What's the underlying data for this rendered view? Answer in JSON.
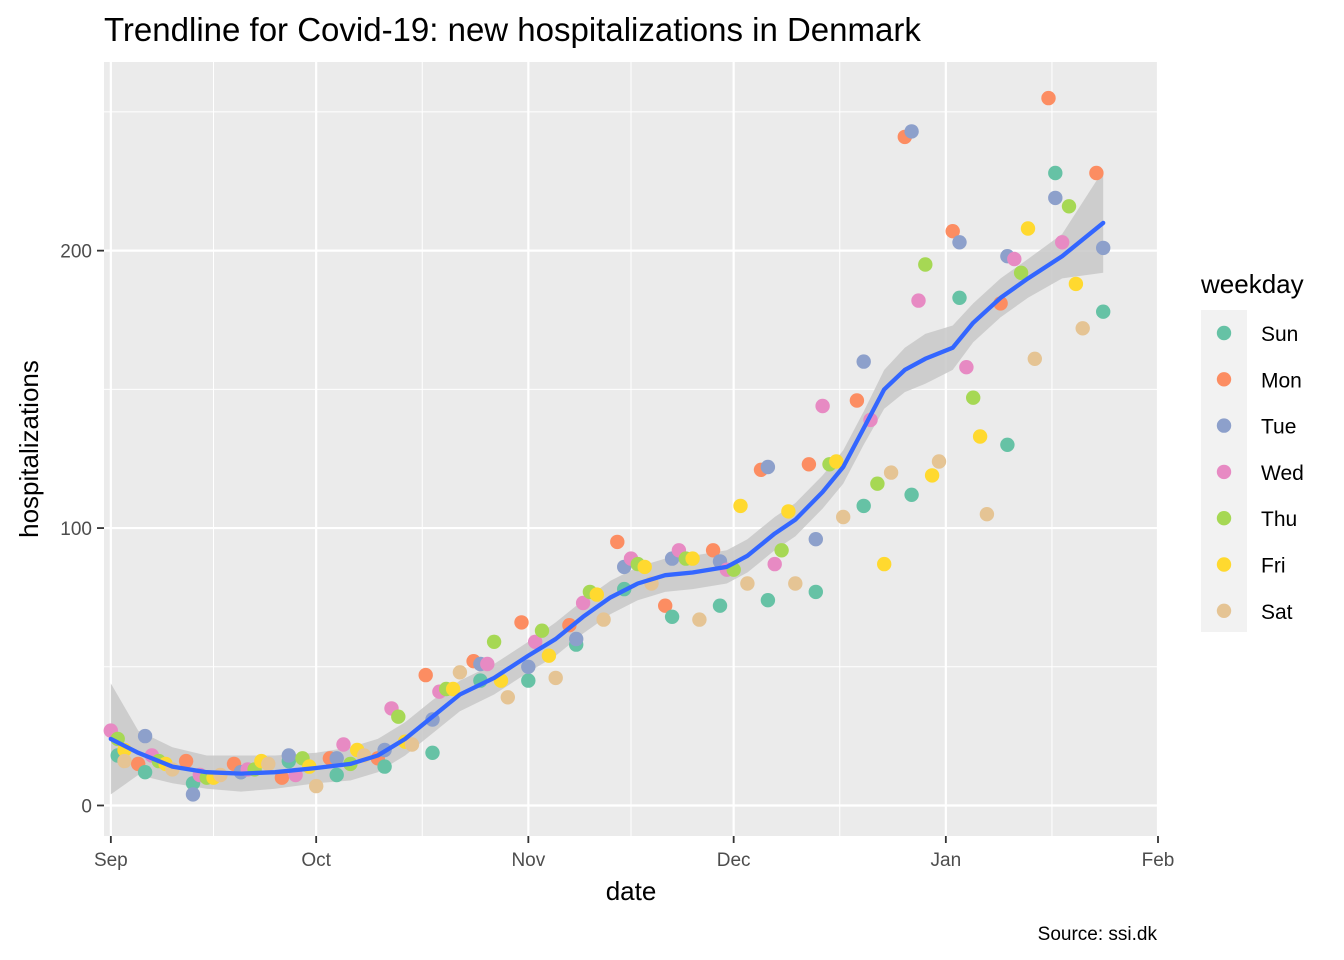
{
  "chart_data": {
    "type": "scatter",
    "title": "Trendline for Covid-19: new hospitalizations in Denmark",
    "xlabel": "date",
    "ylabel": "hospitalizations",
    "caption": "Source: ssi.dk",
    "xlim": [
      "2020-08-31",
      "2021-02-01"
    ],
    "ylim": [
      -11,
      268
    ],
    "x_ticks": [
      {
        "date": "2020-09-01",
        "label": "Sep"
      },
      {
        "date": "2020-10-01",
        "label": "Oct"
      },
      {
        "date": "2020-11-01",
        "label": "Nov"
      },
      {
        "date": "2020-12-01",
        "label": "Dec"
      },
      {
        "date": "2021-01-01",
        "label": "Jan"
      },
      {
        "date": "2021-02-01",
        "label": "Feb"
      }
    ],
    "y_ticks": [
      0,
      100,
      200
    ],
    "grid": true,
    "legend": {
      "title": "weekday",
      "placement": "right",
      "entries": [
        {
          "label": "Sun",
          "color": "#66C2A5"
        },
        {
          "label": "Mon",
          "color": "#FC8D62"
        },
        {
          "label": "Tue",
          "color": "#8DA0CB"
        },
        {
          "label": "Wed",
          "color": "#E78AC3"
        },
        {
          "label": "Thu",
          "color": "#A6D854"
        },
        {
          "label": "Fri",
          "color": "#FFD92F"
        },
        {
          "label": "Sat",
          "color": "#E5C494"
        }
      ]
    },
    "colors": {
      "panel": "#EBEBEB",
      "trend": "#3366FF",
      "ribbon": "#C8C8C8"
    },
    "series": [
      {
        "name": "Sun",
        "points": [
          [
            "2020-09-02",
            18
          ],
          [
            "2020-09-06",
            12
          ],
          [
            "2020-09-13",
            8
          ],
          [
            "2020-09-20",
            12
          ],
          [
            "2020-09-27",
            16
          ],
          [
            "2020-10-04",
            11
          ],
          [
            "2020-10-11",
            14
          ],
          [
            "2020-10-18",
            19
          ],
          [
            "2020-10-25",
            45
          ],
          [
            "2020-11-01",
            45
          ],
          [
            "2020-11-08",
            58
          ],
          [
            "2020-11-15",
            78
          ],
          [
            "2020-11-22",
            68
          ],
          [
            "2020-11-29",
            72
          ],
          [
            "2020-12-06",
            74
          ],
          [
            "2020-12-13",
            77
          ],
          [
            "2020-12-20",
            108
          ],
          [
            "2020-12-27",
            112
          ],
          [
            "2021-01-03",
            183
          ],
          [
            "2021-01-10",
            130
          ],
          [
            "2021-01-17",
            228
          ],
          [
            "2021-01-24",
            178
          ]
        ]
      },
      {
        "name": "Mon",
        "points": [
          [
            "2020-09-05",
            15
          ],
          [
            "2020-09-12",
            16
          ],
          [
            "2020-09-19",
            15
          ],
          [
            "2020-09-26",
            10
          ],
          [
            "2020-10-03",
            17
          ],
          [
            "2020-10-10",
            17
          ],
          [
            "2020-10-17",
            47
          ],
          [
            "2020-10-24",
            52
          ],
          [
            "2020-10-31",
            66
          ],
          [
            "2020-11-07",
            65
          ],
          [
            "2020-11-14",
            95
          ],
          [
            "2020-11-21",
            72
          ],
          [
            "2020-11-28",
            92
          ],
          [
            "2020-12-05",
            121
          ],
          [
            "2020-12-12",
            123
          ],
          [
            "2020-12-19",
            146
          ],
          [
            "2020-12-26",
            241
          ],
          [
            "2021-01-02",
            207
          ],
          [
            "2021-01-09",
            181
          ],
          [
            "2021-01-16",
            255
          ],
          [
            "2021-01-23",
            228
          ]
        ]
      },
      {
        "name": "Tue",
        "points": [
          [
            "2020-09-06",
            25
          ],
          [
            "2020-09-13",
            4
          ],
          [
            "2020-09-20",
            12
          ],
          [
            "2020-09-27",
            18
          ],
          [
            "2020-10-04",
            17
          ],
          [
            "2020-10-11",
            20
          ],
          [
            "2020-10-18",
            31
          ],
          [
            "2020-10-25",
            51
          ],
          [
            "2020-11-01",
            50
          ],
          [
            "2020-11-08",
            60
          ],
          [
            "2020-11-15",
            86
          ],
          [
            "2020-11-22",
            89
          ],
          [
            "2020-11-29",
            88
          ],
          [
            "2020-12-06",
            122
          ],
          [
            "2020-12-13",
            96
          ],
          [
            "2020-12-20",
            160
          ],
          [
            "2020-12-27",
            243
          ],
          [
            "2021-01-03",
            203
          ],
          [
            "2021-01-10",
            198
          ],
          [
            "2021-01-17",
            219
          ],
          [
            "2021-01-24",
            201
          ]
        ]
      },
      {
        "name": "Wed",
        "points": [
          [
            "2020-09-01",
            27
          ],
          [
            "2020-09-07",
            18
          ],
          [
            "2020-09-14",
            11
          ],
          [
            "2020-09-21",
            13
          ],
          [
            "2020-09-28",
            11
          ],
          [
            "2020-10-05",
            22
          ],
          [
            "2020-10-12",
            35
          ],
          [
            "2020-10-19",
            41
          ],
          [
            "2020-10-26",
            51
          ],
          [
            "2020-11-02",
            59
          ],
          [
            "2020-11-09",
            73
          ],
          [
            "2020-11-16",
            89
          ],
          [
            "2020-11-23",
            92
          ],
          [
            "2020-11-30",
            85
          ],
          [
            "2020-12-07",
            87
          ],
          [
            "2020-12-14",
            144
          ],
          [
            "2020-12-21",
            139
          ],
          [
            "2020-12-28",
            182
          ],
          [
            "2021-01-04",
            158
          ],
          [
            "2021-01-11",
            197
          ],
          [
            "2021-01-18",
            203
          ]
        ]
      },
      {
        "name": "Thu",
        "points": [
          [
            "2020-09-02",
            24
          ],
          [
            "2020-09-08",
            16
          ],
          [
            "2020-09-15",
            10
          ],
          [
            "2020-09-22",
            13
          ],
          [
            "2020-09-29",
            17
          ],
          [
            "2020-10-06",
            15
          ],
          [
            "2020-10-13",
            32
          ],
          [
            "2020-10-20",
            42
          ],
          [
            "2020-10-27",
            59
          ],
          [
            "2020-11-03",
            63
          ],
          [
            "2020-11-10",
            77
          ],
          [
            "2020-11-17",
            87
          ],
          [
            "2020-11-24",
            89
          ],
          [
            "2020-12-01",
            85
          ],
          [
            "2020-12-08",
            92
          ],
          [
            "2020-12-15",
            123
          ],
          [
            "2020-12-22",
            116
          ],
          [
            "2020-12-29",
            195
          ],
          [
            "2021-01-05",
            147
          ],
          [
            "2021-01-12",
            192
          ],
          [
            "2021-01-19",
            216
          ]
        ]
      },
      {
        "name": "Fri",
        "points": [
          [
            "2020-09-03",
            20
          ],
          [
            "2020-09-09",
            15
          ],
          [
            "2020-09-16",
            10
          ],
          [
            "2020-09-23",
            16
          ],
          [
            "2020-09-30",
            14
          ],
          [
            "2020-10-07",
            20
          ],
          [
            "2020-10-14",
            23
          ],
          [
            "2020-10-21",
            42
          ],
          [
            "2020-10-28",
            45
          ],
          [
            "2020-11-04",
            54
          ],
          [
            "2020-11-11",
            76
          ],
          [
            "2020-11-18",
            86
          ],
          [
            "2020-11-25",
            89
          ],
          [
            "2020-12-02",
            108
          ],
          [
            "2020-12-09",
            106
          ],
          [
            "2020-12-16",
            124
          ],
          [
            "2020-12-23",
            87
          ],
          [
            "2020-12-30",
            119
          ],
          [
            "2021-01-06",
            133
          ],
          [
            "2021-01-13",
            208
          ],
          [
            "2021-01-20",
            188
          ]
        ]
      },
      {
        "name": "Sat",
        "points": [
          [
            "2020-09-03",
            16
          ],
          [
            "2020-09-10",
            13
          ],
          [
            "2020-09-17",
            11
          ],
          [
            "2020-09-24",
            15
          ],
          [
            "2020-10-01",
            7
          ],
          [
            "2020-10-08",
            18
          ],
          [
            "2020-10-15",
            22
          ],
          [
            "2020-10-22",
            48
          ],
          [
            "2020-10-29",
            39
          ],
          [
            "2020-11-05",
            46
          ],
          [
            "2020-11-12",
            67
          ],
          [
            "2020-11-19",
            80
          ],
          [
            "2020-11-26",
            67
          ],
          [
            "2020-12-03",
            80
          ],
          [
            "2020-12-10",
            80
          ],
          [
            "2020-12-17",
            104
          ],
          [
            "2020-12-24",
            120
          ],
          [
            "2020-12-31",
            124
          ],
          [
            "2021-01-07",
            105
          ],
          [
            "2021-01-14",
            161
          ],
          [
            "2021-01-21",
            172
          ]
        ]
      }
    ],
    "trend": {
      "name": "",
      "points": [
        [
          "2020-09-01",
          24
        ],
        [
          "2020-09-05",
          19
        ],
        [
          "2020-09-10",
          14
        ],
        [
          "2020-09-15",
          12
        ],
        [
          "2020-09-20",
          11.5
        ],
        [
          "2020-09-25",
          12
        ],
        [
          "2020-10-01",
          13.5
        ],
        [
          "2020-10-06",
          15
        ],
        [
          "2020-10-10",
          18
        ],
        [
          "2020-10-14",
          24
        ],
        [
          "2020-10-18",
          32
        ],
        [
          "2020-10-22",
          40
        ],
        [
          "2020-10-27",
          46
        ],
        [
          "2020-11-01",
          54
        ],
        [
          "2020-11-05",
          60
        ],
        [
          "2020-11-09",
          68
        ],
        [
          "2020-11-13",
          75
        ],
        [
          "2020-11-17",
          80
        ],
        [
          "2020-11-21",
          83
        ],
        [
          "2020-11-25",
          84
        ],
        [
          "2020-11-30",
          86
        ],
        [
          "2020-12-03",
          90
        ],
        [
          "2020-12-07",
          98
        ],
        [
          "2020-12-10",
          103
        ],
        [
          "2020-12-14",
          113
        ],
        [
          "2020-12-17",
          122
        ],
        [
          "2020-12-20",
          136
        ],
        [
          "2020-12-23",
          150
        ],
        [
          "2020-12-26",
          157
        ],
        [
          "2020-12-29",
          161
        ],
        [
          "2021-01-02",
          165
        ],
        [
          "2021-01-05",
          174
        ],
        [
          "2021-01-09",
          183
        ],
        [
          "2021-01-13",
          190
        ],
        [
          "2021-01-18",
          198
        ],
        [
          "2021-01-24",
          210
        ]
      ]
    },
    "ribbon": {
      "upper": [
        [
          "2020-09-01",
          44
        ],
        [
          "2020-09-05",
          27
        ],
        [
          "2020-09-10",
          21
        ],
        [
          "2020-09-15",
          18
        ],
        [
          "2020-09-20",
          18
        ],
        [
          "2020-09-25",
          18
        ],
        [
          "2020-10-01",
          19
        ],
        [
          "2020-10-06",
          21
        ],
        [
          "2020-10-10",
          24
        ],
        [
          "2020-10-14",
          30
        ],
        [
          "2020-10-18",
          38
        ],
        [
          "2020-10-22",
          45
        ],
        [
          "2020-10-27",
          51
        ],
        [
          "2020-11-01",
          59
        ],
        [
          "2020-11-05",
          66
        ],
        [
          "2020-11-09",
          74
        ],
        [
          "2020-11-13",
          81
        ],
        [
          "2020-11-17",
          86
        ],
        [
          "2020-11-21",
          89
        ],
        [
          "2020-11-25",
          90
        ],
        [
          "2020-11-30",
          92
        ],
        [
          "2020-12-03",
          96
        ],
        [
          "2020-12-07",
          104
        ],
        [
          "2020-12-10",
          109
        ],
        [
          "2020-12-14",
          119
        ],
        [
          "2020-12-17",
          128
        ],
        [
          "2020-12-20",
          142
        ],
        [
          "2020-12-23",
          157
        ],
        [
          "2020-12-26",
          165
        ],
        [
          "2020-12-29",
          170
        ],
        [
          "2021-01-02",
          173
        ],
        [
          "2021-01-05",
          181
        ],
        [
          "2021-01-09",
          190
        ],
        [
          "2021-01-13",
          197
        ],
        [
          "2021-01-18",
          206
        ],
        [
          "2021-01-24",
          229
        ]
      ],
      "lower": [
        [
          "2020-09-01",
          4
        ],
        [
          "2020-09-05",
          11
        ],
        [
          "2020-09-10",
          8
        ],
        [
          "2020-09-15",
          6
        ],
        [
          "2020-09-20",
          5
        ],
        [
          "2020-09-25",
          6
        ],
        [
          "2020-10-01",
          8
        ],
        [
          "2020-10-06",
          9
        ],
        [
          "2020-10-10",
          12
        ],
        [
          "2020-10-14",
          18
        ],
        [
          "2020-10-18",
          26
        ],
        [
          "2020-10-22",
          34
        ],
        [
          "2020-10-27",
          40
        ],
        [
          "2020-11-01",
          48
        ],
        [
          "2020-11-05",
          54
        ],
        [
          "2020-11-09",
          62
        ],
        [
          "2020-11-13",
          69
        ],
        [
          "2020-11-17",
          74
        ],
        [
          "2020-11-21",
          77
        ],
        [
          "2020-11-25",
          78
        ],
        [
          "2020-11-30",
          80
        ],
        [
          "2020-12-03",
          84
        ],
        [
          "2020-12-07",
          92
        ],
        [
          "2020-12-10",
          97
        ],
        [
          "2020-12-14",
          107
        ],
        [
          "2020-12-17",
          116
        ],
        [
          "2020-12-20",
          130
        ],
        [
          "2020-12-23",
          143
        ],
        [
          "2020-12-26",
          149
        ],
        [
          "2020-12-29",
          152
        ],
        [
          "2021-01-02",
          157
        ],
        [
          "2021-01-05",
          167
        ],
        [
          "2021-01-09",
          176
        ],
        [
          "2021-01-13",
          183
        ],
        [
          "2021-01-18",
          190
        ],
        [
          "2021-01-24",
          192
        ]
      ]
    }
  }
}
